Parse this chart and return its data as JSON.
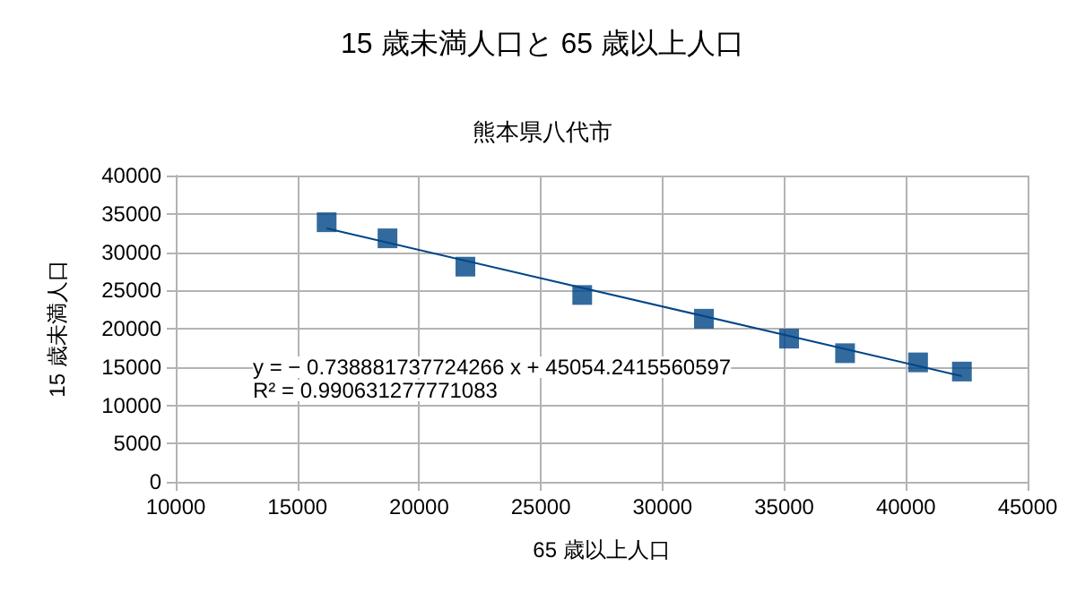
{
  "chart_data": {
    "type": "scatter",
    "title": "15 歳未満人口と 65 歳以上人口",
    "subtitle": "熊本県八代市",
    "xlabel": "65 歳以上人口",
    "ylabel": "15 歳未満人口",
    "annotations": [
      "y = − 0.738881737724266 x + 45054.2415560597",
      "R² = 0.990631277771083"
    ],
    "series": [
      {
        "color": "#004586",
        "x": [
          16200,
          18700,
          21900,
          26700,
          31700,
          35200,
          37500,
          40500,
          42300
        ],
        "values": [
          33900,
          31800,
          28100,
          24400,
          21300,
          18700,
          16800,
          15600,
          14400
        ],
        "marker": "square"
      },
      {
        "type": "line",
        "color": "#004586",
        "x": [
          16200,
          42300
        ],
        "values": [
          33100,
          13800
        ],
        "marker": "none"
      }
    ],
    "xlim": [
      10000,
      45000
    ],
    "xticks": [
      10000,
      15000,
      20000,
      25000,
      30000,
      35000,
      40000,
      45000
    ],
    "ylim": [
      0,
      40000
    ],
    "yticks": [
      0,
      5000,
      10000,
      15000,
      20000,
      25000,
      30000,
      35000,
      40000
    ],
    "grid": true
  }
}
